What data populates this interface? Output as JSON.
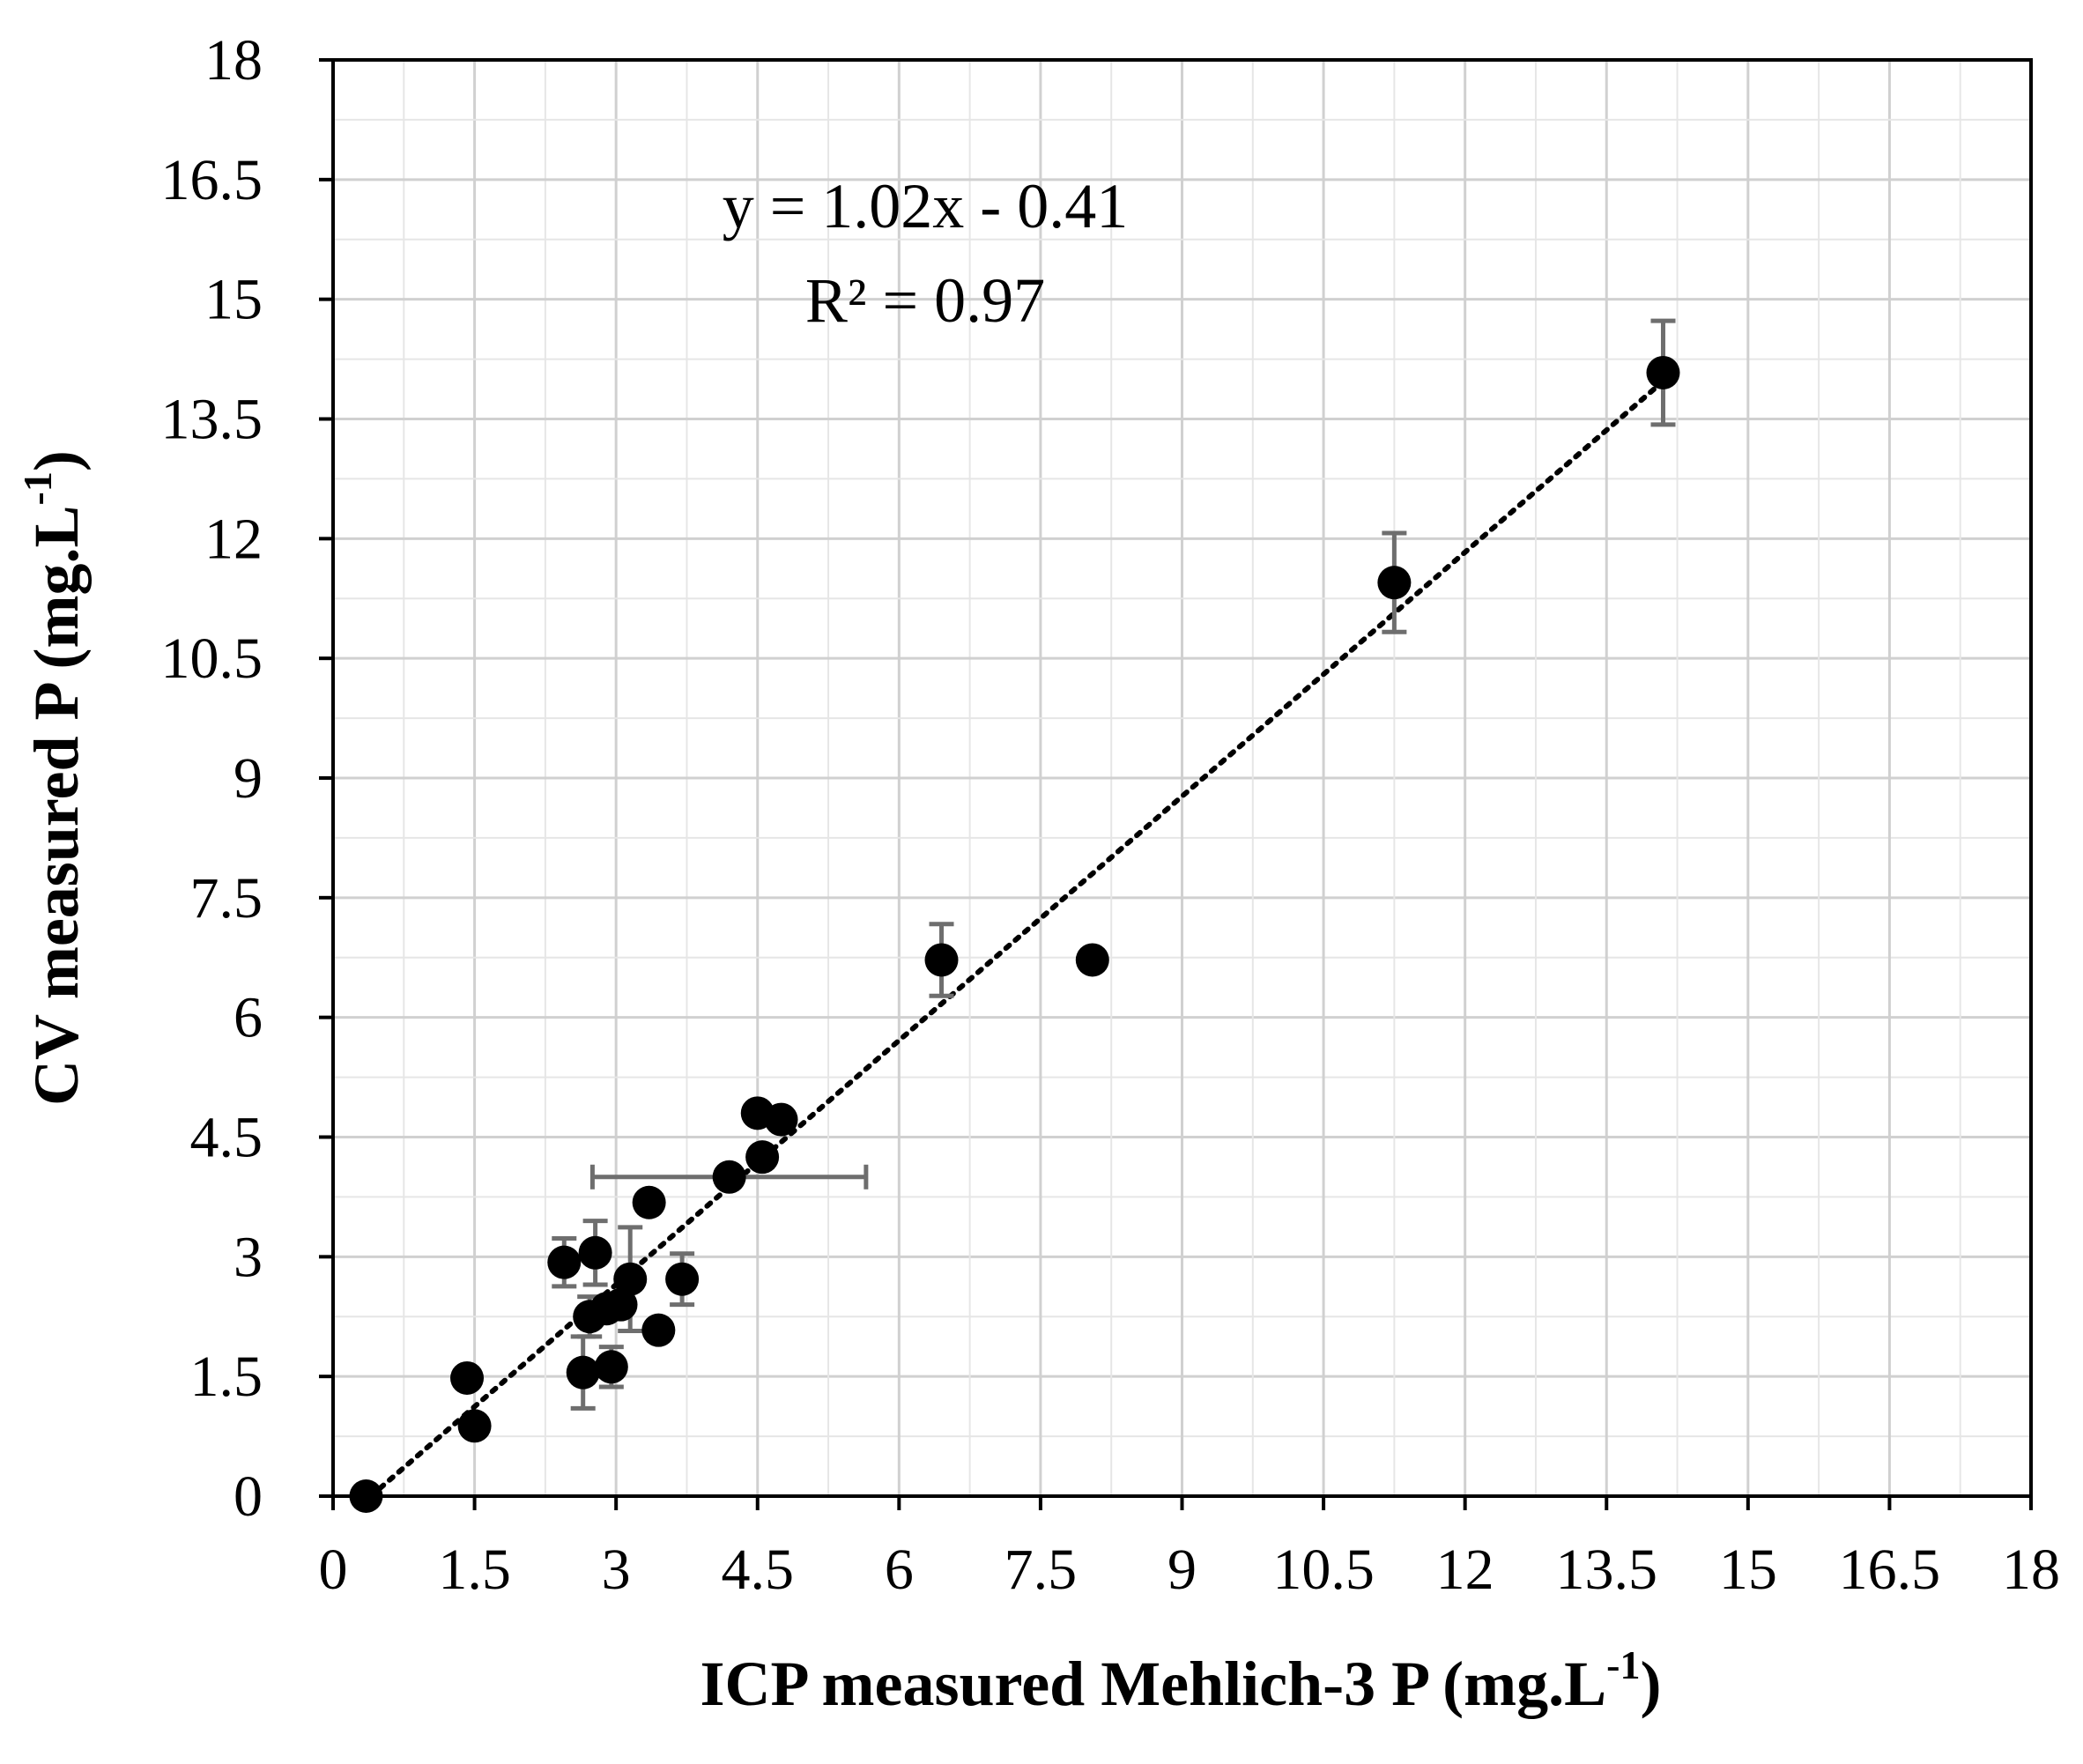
{
  "chart_data": {
    "type": "scatter",
    "xlabel": "ICP measured Mehlich-3 P (mg.L",
    "ylabel": "CV measured P (mg.L",
    "unit_superscript": "-1",
    "xlim": [
      0,
      18
    ],
    "ylim": [
      0,
      18
    ],
    "xticks": [
      "0",
      "1.5",
      "3",
      "4.5",
      "6",
      "7.5",
      "9",
      "10.5",
      "12",
      "13.5",
      "15",
      "16.5",
      "18"
    ],
    "yticks": [
      "0",
      "1.5",
      "3",
      "4.5",
      "6",
      "7.5",
      "9",
      "10.5",
      "12",
      "13.5",
      "15",
      "16.5",
      "18"
    ],
    "grid": true,
    "annotation": {
      "equation": "y = 1.02x - 0.41",
      "r2_label": "R² = 0.97"
    },
    "trendline": {
      "slope": 1.02,
      "intercept": -0.41,
      "x_range": [
        0.4,
        14.1
      ],
      "style": "dotted"
    },
    "marker_color": "#000000",
    "errorbar_color": "#6e6e6e",
    "points": [
      {
        "x": 0.35,
        "y": 0.0
      },
      {
        "x": 1.42,
        "y": 1.48
      },
      {
        "x": 1.5,
        "y": 0.88
      },
      {
        "x": 2.45,
        "y": 2.93,
        "yerr": 0.3
      },
      {
        "x": 2.65,
        "y": 1.55,
        "yerr": 0.45
      },
      {
        "x": 2.72,
        "y": 2.25,
        "yerr": 0.25
      },
      {
        "x": 2.78,
        "y": 3.05,
        "yerr": 0.4
      },
      {
        "x": 2.9,
        "y": 2.35
      },
      {
        "x": 2.95,
        "y": 1.62,
        "yerr": 0.25
      },
      {
        "x": 3.05,
        "y": 2.4
      },
      {
        "x": 3.15,
        "y": 2.72,
        "yerr": 0.65
      },
      {
        "x": 3.35,
        "y": 3.68
      },
      {
        "x": 3.45,
        "y": 2.08
      },
      {
        "x": 3.7,
        "y": 2.72,
        "yerr": 0.32
      },
      {
        "x": 4.2,
        "y": 4.0,
        "xerr": 1.45
      },
      {
        "x": 4.5,
        "y": 4.8
      },
      {
        "x": 4.55,
        "y": 4.25
      },
      {
        "x": 4.75,
        "y": 4.72
      },
      {
        "x": 6.45,
        "y": 6.72,
        "yerr": 0.45
      },
      {
        "x": 8.05,
        "y": 6.72
      },
      {
        "x": 11.25,
        "y": 11.45,
        "yerr": 0.62
      },
      {
        "x": 14.1,
        "y": 14.08,
        "yerr": 0.65
      }
    ]
  }
}
